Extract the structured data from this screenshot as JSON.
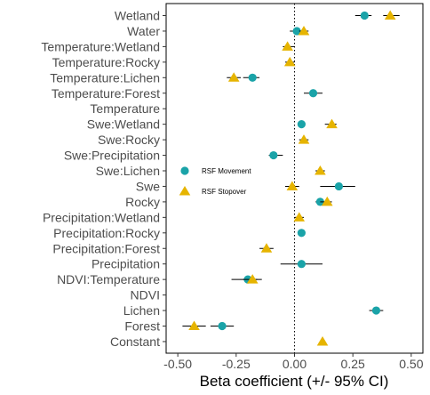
{
  "chart_data": {
    "type": "scatter",
    "orientation": "horizontal coefficient plot",
    "xlabel": "Beta coefficient (+/- 95% CI)",
    "xlim": [
      -0.55,
      0.55
    ],
    "x_ticks": [
      -0.5,
      -0.25,
      0.0,
      0.25,
      0.5
    ],
    "x_tick_labels": [
      "-0.50",
      "-0.25",
      "0.00",
      "0.25",
      "0.50"
    ],
    "reference_line": 0.0,
    "grid": false,
    "legend_position": "left, inside plot",
    "categories": [
      "Wetland",
      "Water",
      "Temperature:Wetland",
      "Temperature:Rocky",
      "Temperature:Lichen",
      "Temperature:Forest",
      "Temperature",
      "Swe:Wetland",
      "Swe:Rocky",
      "Swe:Precipitation",
      "Swe:Lichen",
      "Swe",
      "Rocky",
      "Precipitation:Wetland",
      "Precipitation:Rocky",
      "Precipitation:Forest",
      "Precipitation",
      "NDVI:Temperature",
      "NDVI",
      "Lichen",
      "Forest",
      "Constant"
    ],
    "series": [
      {
        "name": "RSF Movement",
        "marker": "circle",
        "color": "#1aa3a8",
        "values": [
          0.3,
          0.01,
          null,
          null,
          -0.18,
          0.08,
          null,
          0.03,
          null,
          -0.09,
          null,
          0.19,
          0.11,
          null,
          0.03,
          null,
          0.03,
          -0.2,
          null,
          0.35,
          -0.31,
          null
        ],
        "ci_low": [
          0.26,
          -0.02,
          null,
          null,
          -0.22,
          0.04,
          null,
          null,
          null,
          -0.11,
          null,
          0.11,
          0.09,
          null,
          null,
          null,
          -0.06,
          -0.27,
          null,
          0.32,
          -0.36,
          null
        ],
        "ci_high": [
          0.33,
          0.04,
          null,
          null,
          -0.15,
          0.12,
          null,
          null,
          null,
          -0.05,
          null,
          0.26,
          0.13,
          null,
          null,
          null,
          0.12,
          -0.16,
          null,
          0.38,
          -0.26,
          null
        ]
      },
      {
        "name": "RSF Stopover",
        "marker": "triangle",
        "color": "#e6b400",
        "values": [
          0.41,
          0.04,
          -0.03,
          -0.02,
          -0.26,
          null,
          null,
          0.16,
          0.04,
          null,
          0.11,
          -0.01,
          0.14,
          0.02,
          null,
          -0.12,
          null,
          -0.18,
          null,
          null,
          -0.43,
          0.12
        ],
        "ci_low": [
          0.38,
          0.02,
          -0.05,
          -0.04,
          -0.29,
          null,
          null,
          0.13,
          0.02,
          null,
          0.09,
          -0.04,
          0.11,
          0.0,
          null,
          -0.15,
          null,
          -0.22,
          null,
          null,
          -0.48,
          null
        ],
        "ci_high": [
          0.45,
          0.06,
          0.0,
          0.0,
          -0.23,
          null,
          null,
          0.18,
          0.06,
          null,
          0.13,
          0.02,
          0.16,
          0.04,
          null,
          -0.09,
          null,
          -0.14,
          null,
          null,
          -0.38,
          null
        ]
      }
    ]
  }
}
